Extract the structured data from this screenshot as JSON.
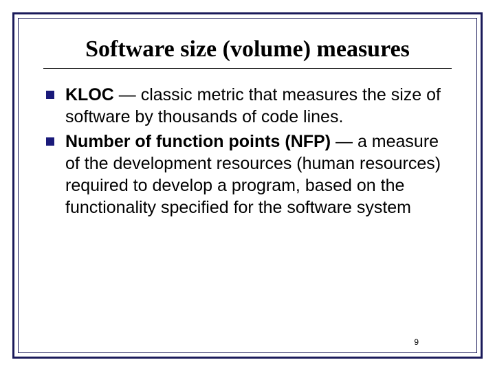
{
  "slide": {
    "title": "Software size (volume) measures",
    "title_fontsize": 34,
    "title_color": "#000000",
    "underline_color": "#000000",
    "border_outer_color": "#1a1a5a",
    "border_inner_color": "#1a1a5a",
    "bullet_color": "#1a1a7a",
    "background_color": "#ffffff",
    "body_font": "Arial",
    "body_fontsize": 25,
    "bullets": [
      {
        "bold": "KLOC",
        "rest": " — classic metric that measures the size of software by thousands of code lines."
      },
      {
        "bold": "Number of function points (NFP)",
        "rest": " — a measure of the development resources (human resources) required to develop a program, based on the functionality specified for the software system"
      }
    ],
    "page_number": "9"
  }
}
